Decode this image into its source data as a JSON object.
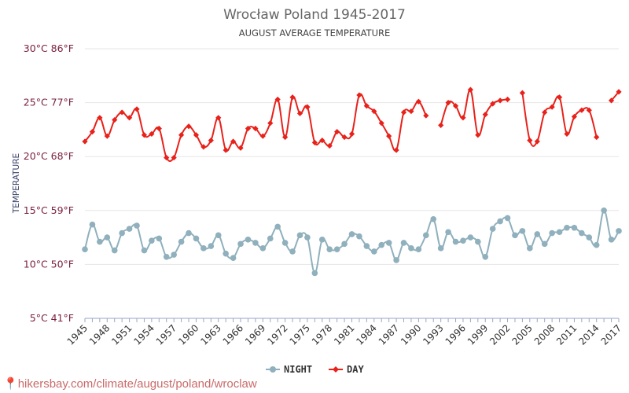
{
  "chart_data": {
    "type": "line",
    "title": "Wrocław Poland 1945-2017",
    "subtitle": "AUGUST AVERAGE TEMPERATURE",
    "ylabel": "TEMPERATURE",
    "xlabel": "",
    "ylim": [
      5,
      30
    ],
    "xlim": [
      1945,
      2017
    ],
    "y_ticks": [
      {
        "value": 30,
        "label": "30°C 86°F"
      },
      {
        "value": 25,
        "label": "25°C 77°F"
      },
      {
        "value": 20,
        "label": "20°C 68°F"
      },
      {
        "value": 15,
        "label": "15°C 59°F"
      },
      {
        "value": 10,
        "label": "10°C 50°F"
      },
      {
        "value": 5,
        "label": "5°C 41°F"
      }
    ],
    "x_ticks": [
      1945,
      1948,
      1951,
      1954,
      1957,
      1960,
      1963,
      1966,
      1969,
      1972,
      1975,
      1978,
      1981,
      1984,
      1987,
      1990,
      1993,
      1996,
      1999,
      2002,
      2005,
      2008,
      2011,
      2014,
      2017
    ],
    "grid": true,
    "legend_position": "bottom",
    "series": [
      {
        "name": "NIGHT",
        "color": "#8fb0bc",
        "marker": "circle",
        "x": [
          1945,
          1946,
          1947,
          1948,
          1949,
          1950,
          1951,
          1952,
          1953,
          1954,
          1955,
          1956,
          1957,
          1958,
          1959,
          1960,
          1961,
          1962,
          1963,
          1964,
          1965,
          1966,
          1967,
          1968,
          1969,
          1970,
          1971,
          1972,
          1973,
          1974,
          1975,
          1976,
          1977,
          1978,
          1979,
          1980,
          1981,
          1982,
          1983,
          1984,
          1985,
          1986,
          1987,
          1988,
          1989,
          1990,
          1991,
          1992,
          1993,
          1994,
          1995,
          1996,
          1997,
          1998,
          1999,
          2000,
          2001,
          2002,
          2003,
          2004,
          2005,
          2006,
          2007,
          2008,
          2009,
          2010,
          2011,
          2012,
          2013,
          2014,
          2015,
          2016,
          2017
        ],
        "y": [
          11.4,
          13.7,
          12.1,
          12.5,
          11.3,
          12.9,
          13.3,
          13.6,
          11.3,
          12.2,
          12.4,
          10.7,
          10.9,
          12.1,
          12.9,
          12.4,
          11.5,
          11.7,
          12.7,
          11.0,
          10.6,
          11.9,
          12.3,
          12.0,
          11.5,
          12.4,
          13.5,
          12.0,
          11.2,
          12.7,
          12.5,
          9.2,
          12.3,
          11.4,
          11.4,
          11.9,
          12.8,
          12.6,
          11.7,
          11.2,
          11.8,
          12.0,
          10.4,
          12.0,
          11.5,
          11.4,
          12.7,
          14.2,
          11.5,
          13.0,
          12.1,
          12.2,
          12.5,
          12.1,
          10.7,
          13.3,
          14.0,
          14.3,
          12.7,
          13.1,
          11.5,
          12.8,
          11.9,
          12.9,
          13.0,
          13.4,
          13.4,
          12.9,
          12.5,
          11.8,
          15.0,
          12.3,
          13.1
        ]
      },
      {
        "name": "DAY",
        "color": "#e8211a",
        "marker": "diamond",
        "x": [
          1945,
          1946,
          1947,
          1948,
          1949,
          1950,
          1951,
          1952,
          1953,
          1954,
          1955,
          1956,
          1957,
          1958,
          1959,
          1960,
          1961,
          1962,
          1963,
          1964,
          1965,
          1966,
          1967,
          1968,
          1969,
          1970,
          1971,
          1972,
          1973,
          1974,
          1975,
          1976,
          1977,
          1978,
          1979,
          1980,
          1981,
          1982,
          1983,
          1984,
          1985,
          1986,
          1987,
          1988,
          1989,
          1990,
          1991,
          1992,
          1993,
          1994,
          1995,
          1996,
          1997,
          1998,
          1999,
          2000,
          2001,
          2002,
          2003,
          2004,
          2005,
          2006,
          2007,
          2008,
          2009,
          2010,
          2011,
          2012,
          2013,
          2014,
          2015,
          2016,
          2017
        ],
        "y": [
          21.4,
          22.3,
          23.6,
          21.9,
          23.4,
          24.1,
          23.6,
          24.4,
          22.0,
          22.1,
          22.6,
          19.9,
          19.9,
          22.0,
          22.8,
          22.0,
          20.9,
          21.5,
          23.6,
          20.6,
          21.4,
          20.8,
          22.6,
          22.6,
          21.9,
          23.1,
          25.3,
          21.8,
          25.5,
          24.0,
          24.6,
          21.3,
          21.5,
          21.0,
          22.3,
          21.8,
          22.1,
          25.7,
          24.7,
          24.2,
          23.1,
          21.9,
          20.6,
          24.1,
          24.2,
          25.1,
          23.8,
          null,
          22.9,
          25.0,
          24.7,
          23.6,
          26.2,
          22.0,
          23.9,
          24.9,
          25.2,
          25.3,
          null,
          25.9,
          21.5,
          21.4,
          24.1,
          24.6,
          25.5,
          22.1,
          23.7,
          24.3,
          24.3,
          21.8,
          null,
          25.2,
          26.0
        ]
      }
    ]
  }
}
